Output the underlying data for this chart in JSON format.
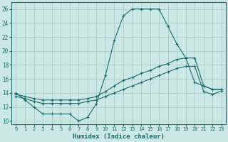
{
  "title": "",
  "xlabel": "Humidex (Indice chaleur)",
  "ylabel": "",
  "bg_color": "#cce8e6",
  "line_color": "#1a6b6b",
  "grid_color": "#b0d0ce",
  "xlim": [
    -0.5,
    23.5
  ],
  "ylim": [
    9.5,
    27.0
  ],
  "xticks": [
    0,
    1,
    2,
    3,
    4,
    5,
    6,
    7,
    8,
    9,
    10,
    11,
    12,
    13,
    14,
    15,
    16,
    17,
    18,
    19,
    20,
    21,
    22,
    23
  ],
  "yticks": [
    10,
    12,
    14,
    16,
    18,
    20,
    22,
    24,
    26
  ],
  "line1_x": [
    0,
    1,
    2,
    3,
    4,
    5,
    6,
    7,
    8,
    9,
    10,
    11,
    12,
    13,
    14,
    15,
    16,
    17,
    18,
    19,
    20,
    21,
    22,
    23
  ],
  "line1_y": [
    14.0,
    13.0,
    12.0,
    11.0,
    11.0,
    11.0,
    11.0,
    10.0,
    10.5,
    12.5,
    16.5,
    21.5,
    25.0,
    26.0,
    26.0,
    26.0,
    26.0,
    23.5,
    21.0,
    19.0,
    15.5,
    15.0,
    14.5,
    14.5
  ],
  "line2_x": [
    0,
    1,
    2,
    3,
    4,
    5,
    6,
    7,
    8,
    9,
    10,
    11,
    12,
    13,
    14,
    15,
    16,
    17,
    18,
    19,
    20,
    21,
    22,
    23
  ],
  "line2_y": [
    13.8,
    13.5,
    13.2,
    13.0,
    13.0,
    13.0,
    13.0,
    13.0,
    13.2,
    13.5,
    14.2,
    15.0,
    15.8,
    16.2,
    16.8,
    17.2,
    17.8,
    18.2,
    18.8,
    19.0,
    19.0,
    15.0,
    14.5,
    14.5
  ],
  "line3_x": [
    0,
    1,
    2,
    3,
    4,
    5,
    6,
    7,
    8,
    9,
    10,
    11,
    12,
    13,
    14,
    15,
    16,
    17,
    18,
    19,
    20,
    21,
    22,
    23
  ],
  "line3_y": [
    13.5,
    13.2,
    12.8,
    12.5,
    12.5,
    12.5,
    12.5,
    12.5,
    12.8,
    13.0,
    13.5,
    14.0,
    14.5,
    15.0,
    15.5,
    16.0,
    16.5,
    17.0,
    17.5,
    17.8,
    17.8,
    14.2,
    13.8,
    14.3
  ]
}
